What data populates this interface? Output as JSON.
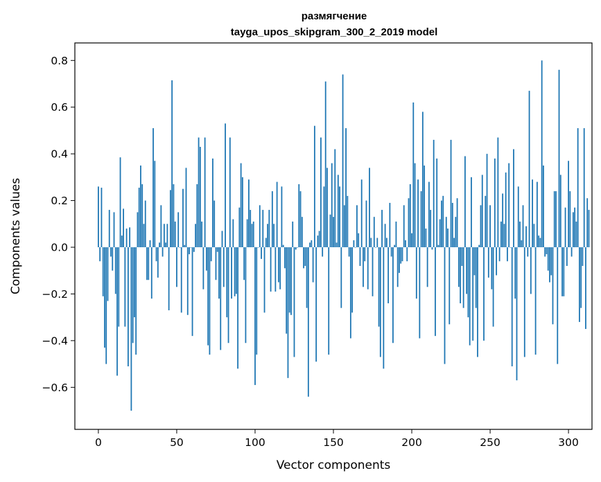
{
  "chart_data": {
    "type": "bar",
    "title_line1": "размягчение",
    "title_line2": "tayga_upos_skipgram_300_2_2019 model",
    "xlabel": "Vector components",
    "ylabel": "Components values",
    "xlim": [
      -15,
      315
    ],
    "ylim": [
      -0.78,
      0.875
    ],
    "xticks": [
      0,
      50,
      100,
      150,
      200,
      250,
      300
    ],
    "yticks": [
      -0.6,
      -0.4,
      -0.2,
      0.0,
      0.2,
      0.4,
      0.6,
      0.8
    ],
    "ytick_labels": [
      "−0.6",
      "−0.4",
      "−0.2",
      "0.0",
      "0.2",
      "0.4",
      "0.6",
      "0.8"
    ],
    "bar_color": "#1f77b4",
    "grid": false,
    "values": [
      0.26,
      -0.06,
      0.255,
      -0.21,
      -0.43,
      -0.5,
      -0.23,
      0.16,
      -0.04,
      -0.1,
      0.15,
      -0.2,
      -0.55,
      -0.34,
      0.385,
      0.05,
      0.165,
      -0.34,
      0.08,
      -0.51,
      0.085,
      -0.7,
      -0.41,
      -0.3,
      -0.46,
      0.15,
      0.255,
      0.35,
      0.27,
      0.1,
      0.2,
      -0.14,
      -0.14,
      0.03,
      -0.22,
      0.51,
      0.37,
      -0.06,
      -0.13,
      0.02,
      0.18,
      -0.04,
      0.1,
      0.02,
      0.1,
      -0.27,
      0.245,
      0.715,
      0.27,
      0.11,
      -0.17,
      0.15,
      0.0,
      -0.28,
      0.25,
      0.01,
      0.34,
      -0.29,
      -0.03,
      0.0,
      -0.38,
      -0.02,
      0.1,
      0.27,
      0.47,
      0.43,
      0.11,
      -0.18,
      0.47,
      -0.1,
      -0.42,
      -0.46,
      -0.06,
      0.38,
      0.2,
      -0.14,
      -0.02,
      -0.22,
      -0.44,
      0.07,
      -0.17,
      0.53,
      -0.3,
      -0.41,
      0.47,
      -0.22,
      0.12,
      -0.21,
      -0.2,
      -0.52,
      0.17,
      0.36,
      0.3,
      -0.14,
      -0.41,
      0.12,
      0.29,
      0.16,
      0.1,
      0.11,
      -0.59,
      -0.46,
      0.0,
      0.18,
      -0.05,
      0.16,
      -0.28,
      0.04,
      0.1,
      0.16,
      -0.19,
      0.24,
      0.1,
      -0.19,
      0.28,
      -0.15,
      -0.18,
      0.26,
      0.01,
      -0.09,
      -0.37,
      -0.56,
      -0.28,
      -0.29,
      0.11,
      -0.47,
      -0.01,
      0.0,
      0.27,
      0.24,
      0.13,
      -0.09,
      -0.08,
      -0.26,
      -0.64,
      0.02,
      0.03,
      -0.15,
      0.52,
      -0.49,
      0.05,
      0.07,
      0.47,
      -0.04,
      0.26,
      0.71,
      0.34,
      -0.46,
      0.14,
      0.36,
      0.13,
      0.42,
      0.02,
      0.31,
      0.26,
      -0.26,
      0.74,
      0.18,
      0.51,
      0.22,
      -0.04,
      -0.39,
      -0.28,
      0.03,
      0.0,
      0.18,
      0.06,
      -0.08,
      0.29,
      -0.17,
      -0.06,
      0.2,
      -0.18,
      0.34,
      0.04,
      -0.21,
      0.13,
      0.0,
      0.04,
      -0.34,
      -0.47,
      0.16,
      -0.52,
      0.1,
      0.04,
      -0.24,
      0.19,
      -0.04,
      -0.41,
      0.01,
      0.11,
      -0.17,
      -0.11,
      -0.07,
      -0.06,
      0.18,
      0.03,
      -0.06,
      0.21,
      0.27,
      0.06,
      0.62,
      0.36,
      -0.22,
      0.29,
      -0.39,
      0.24,
      0.58,
      0.35,
      0.08,
      -0.17,
      0.28,
      0.16,
      -0.01,
      0.46,
      -0.38,
      0.38,
      0.01,
      0.12,
      0.2,
      0.22,
      -0.5,
      0.13,
      0.08,
      -0.33,
      0.46,
      0.19,
      0.04,
      0.13,
      0.21,
      -0.17,
      -0.24,
      -0.08,
      -0.26,
      0.39,
      -0.2,
      -0.3,
      -0.42,
      0.3,
      -0.4,
      -0.12,
      -0.26,
      -0.47,
      0.01,
      0.18,
      0.31,
      -0.4,
      0.22,
      0.4,
      -0.13,
      0.18,
      -0.18,
      -0.34,
      0.38,
      -0.12,
      0.47,
      -0.06,
      0.11,
      0.23,
      0.1,
      0.32,
      -0.06,
      0.36,
      0.0,
      -0.51,
      0.42,
      -0.22,
      -0.57,
      0.26,
      0.11,
      0.03,
      0.18,
      -0.47,
      0.09,
      -0.04,
      0.67,
      -0.2,
      0.29,
      0.1,
      -0.46,
      0.28,
      0.05,
      0.04,
      0.8,
      0.35,
      -0.04,
      -0.03,
      -0.1,
      -0.15,
      -0.12,
      -0.33,
      0.24,
      0.24,
      -0.5,
      0.76,
      0.31,
      -0.21,
      -0.21,
      0.17,
      -0.08,
      0.37,
      0.24,
      -0.04,
      0.15,
      0.17,
      0.11,
      0.51,
      -0.32,
      -0.26,
      -0.08,
      0.51,
      -0.35,
      0.21,
      0.16
    ]
  }
}
